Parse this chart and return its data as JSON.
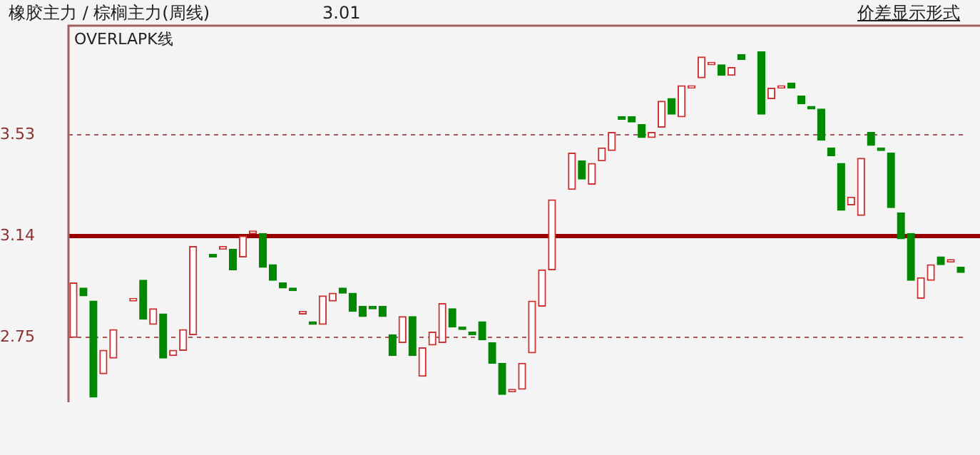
{
  "chart_data": {
    "type": "candlestick",
    "title": "橡胶主力 / 棕榈主力(周线)",
    "subtitle": "3.01",
    "annotations": [
      "价差显示形式",
      "OVERLAPK线"
    ],
    "categories": [
      null,
      null,
      null,
      null,
      null,
      null,
      null,
      null,
      null,
      null,
      null,
      null,
      null,
      null,
      null,
      null,
      null,
      null,
      null,
      null,
      null,
      null,
      null,
      null,
      null,
      null,
      null,
      null,
      null,
      null,
      null,
      null,
      null,
      null,
      null,
      null,
      null,
      null,
      null,
      null,
      null,
      null,
      null,
      null,
      null,
      null,
      null,
      null,
      null,
      null,
      null,
      null,
      null,
      null,
      null,
      null,
      null,
      null,
      null,
      null,
      null,
      null,
      null,
      null,
      null,
      null,
      null,
      null,
      null,
      null,
      null,
      null,
      null,
      null,
      null,
      null,
      null,
      null,
      null,
      null,
      null,
      null,
      null,
      null,
      null,
      null,
      null,
      null,
      null,
      null
    ],
    "ohlc": [
      [
        2.75,
        2.96,
        2.75,
        2.96
      ],
      [
        2.94,
        2.94,
        2.91,
        2.91
      ],
      [
        2.89,
        2.89,
        2.52,
        2.52
      ],
      [
        2.61,
        2.7,
        2.61,
        2.7
      ],
      [
        2.67,
        2.78,
        2.67,
        2.78
      ],
      null,
      [
        2.89,
        2.9,
        2.89,
        2.9
      ],
      [
        2.97,
        2.97,
        2.82,
        2.82
      ],
      [
        2.8,
        2.86,
        2.8,
        2.86
      ],
      [
        2.84,
        2.84,
        2.67,
        2.67
      ],
      [
        2.68,
        2.7,
        2.68,
        2.7
      ],
      [
        2.7,
        2.78,
        2.7,
        2.78
      ],
      [
        2.76,
        3.1,
        2.76,
        3.1
      ],
      null,
      [
        3.07,
        3.07,
        3.06,
        3.06
      ],
      [
        3.09,
        3.1,
        3.09,
        3.1
      ],
      [
        3.09,
        3.09,
        3.01,
        3.01
      ],
      [
        3.06,
        3.14,
        3.06,
        3.14
      ],
      [
        3.15,
        3.16,
        3.15,
        3.16
      ],
      [
        3.15,
        3.15,
        3.02,
        3.02
      ],
      [
        3.03,
        3.03,
        2.97,
        2.97
      ],
      [
        2.96,
        2.96,
        2.94,
        2.94
      ],
      [
        2.94,
        2.94,
        2.93,
        2.93
      ],
      [
        2.84,
        2.85,
        2.84,
        2.85
      ],
      [
        2.81,
        2.81,
        2.8,
        2.8
      ],
      [
        2.8,
        2.91,
        2.8,
        2.91
      ],
      [
        2.89,
        2.92,
        2.89,
        2.92
      ],
      [
        2.94,
        2.94,
        2.92,
        2.92
      ],
      [
        2.92,
        2.92,
        2.85,
        2.85
      ],
      [
        2.87,
        2.87,
        2.83,
        2.83
      ],
      [
        2.87,
        2.87,
        2.86,
        2.86
      ],
      [
        2.87,
        2.87,
        2.83,
        2.83
      ],
      [
        2.76,
        2.76,
        2.68,
        2.68
      ],
      [
        2.73,
        2.83,
        2.73,
        2.83
      ],
      [
        2.83,
        2.83,
        2.68,
        2.68
      ],
      [
        2.6,
        2.71,
        2.6,
        2.71
      ],
      [
        2.72,
        2.77,
        2.72,
        2.77
      ],
      [
        2.73,
        2.88,
        2.73,
        2.88
      ],
      [
        2.86,
        2.86,
        2.79,
        2.79
      ],
      [
        2.79,
        2.79,
        2.78,
        2.78
      ],
      [
        2.77,
        2.77,
        2.76,
        2.76
      ],
      [
        2.81,
        2.81,
        2.74,
        2.74
      ],
      [
        2.73,
        2.73,
        2.65,
        2.65
      ],
      [
        2.65,
        2.65,
        2.53,
        2.53
      ],
      [
        2.54,
        2.55,
        2.54,
        2.55
      ],
      [
        2.55,
        2.65,
        2.55,
        2.65
      ],
      [
        2.69,
        2.89,
        2.69,
        2.89
      ],
      [
        2.87,
        3.01,
        2.87,
        3.01
      ],
      [
        3.01,
        3.28,
        3.01,
        3.28
      ],
      null,
      [
        3.32,
        3.46,
        3.32,
        3.46
      ],
      [
        3.43,
        3.43,
        3.36,
        3.36
      ],
      [
        3.34,
        3.42,
        3.34,
        3.42
      ],
      [
        3.43,
        3.48,
        3.43,
        3.48
      ],
      [
        3.47,
        3.54,
        3.47,
        3.54
      ],
      [
        3.6,
        3.6,
        3.59,
        3.59
      ],
      [
        3.6,
        3.6,
        3.58,
        3.58
      ],
      [
        3.57,
        3.57,
        3.52,
        3.52
      ],
      [
        3.52,
        3.54,
        3.52,
        3.54
      ],
      [
        3.56,
        3.66,
        3.56,
        3.66
      ],
      [
        3.67,
        3.67,
        3.61,
        3.61
      ],
      [
        3.6,
        3.72,
        3.6,
        3.72
      ],
      [
        3.71,
        3.72,
        3.71,
        3.72
      ],
      [
        3.75,
        3.83,
        3.75,
        3.83
      ],
      [
        3.8,
        3.81,
        3.8,
        3.81
      ],
      [
        3.8,
        3.8,
        3.76,
        3.76
      ],
      [
        3.76,
        3.79,
        3.76,
        3.79
      ],
      [
        3.84,
        3.84,
        3.82,
        3.82
      ],
      null,
      [
        3.85,
        3.85,
        3.61,
        3.61
      ],
      [
        3.67,
        3.71,
        3.67,
        3.71
      ],
      [
        3.71,
        3.72,
        3.71,
        3.72
      ],
      [
        3.73,
        3.73,
        3.71,
        3.71
      ],
      [
        3.68,
        3.68,
        3.65,
        3.65
      ],
      [
        3.64,
        3.64,
        3.63,
        3.63
      ],
      [
        3.63,
        3.63,
        3.51,
        3.51
      ],
      [
        3.48,
        3.48,
        3.45,
        3.45
      ],
      [
        3.42,
        3.42,
        3.24,
        3.24
      ],
      [
        3.26,
        3.29,
        3.26,
        3.29
      ],
      [
        3.22,
        3.44,
        3.22,
        3.44
      ],
      [
        3.54,
        3.54,
        3.49,
        3.49
      ],
      [
        3.48,
        3.48,
        3.47,
        3.47
      ],
      [
        3.46,
        3.46,
        3.25,
        3.25
      ],
      [
        3.23,
        3.23,
        3.13,
        3.13
      ],
      [
        3.15,
        3.15,
        2.97,
        2.97
      ],
      [
        2.9,
        2.98,
        2.9,
        2.98
      ],
      [
        2.97,
        3.03,
        2.97,
        3.03
      ],
      [
        3.06,
        3.06,
        3.03,
        3.03
      ],
      [
        3.04,
        3.05,
        3.04,
        3.05
      ],
      [
        3.02,
        3.02,
        3.0,
        3.0
      ]
    ],
    "colors": [
      "#cc3333",
      "#008800",
      "#008800",
      "#cc3333",
      "#cc3333",
      null,
      "#cc3333",
      "#008800",
      "#cc3333",
      "#008800",
      "#cc3333",
      "#cc3333",
      "#cc3333",
      null,
      "#008800",
      "#cc3333",
      "#008800",
      "#cc3333",
      "#cc3333",
      "#008800",
      "#008800",
      "#008800",
      "#008800",
      "#cc3333",
      "#008800",
      "#cc3333",
      "#cc3333",
      "#008800",
      "#008800",
      "#008800",
      "#008800",
      "#008800",
      "#008800",
      "#cc3333",
      "#008800",
      "#cc3333",
      "#cc3333",
      "#cc3333",
      "#008800",
      "#008800",
      "#008800",
      "#008800",
      "#008800",
      "#008800",
      "#cc3333",
      "#cc3333",
      "#cc3333",
      "#cc3333",
      "#cc3333",
      null,
      "#cc3333",
      "#008800",
      "#cc3333",
      "#cc3333",
      "#cc3333",
      "#008800",
      "#008800",
      "#008800",
      "#cc3333",
      "#cc3333",
      "#008800",
      "#cc3333",
      "#cc3333",
      "#cc3333",
      "#cc3333",
      "#008800",
      "#cc3333",
      "#008800",
      null,
      "#008800",
      "#cc3333",
      "#cc3333",
      "#008800",
      "#008800",
      "#008800",
      "#008800",
      "#008800",
      "#008800",
      "#cc3333",
      "#cc3333",
      "#008800",
      "#008800",
      "#008800",
      "#008800",
      "#008800",
      "#cc3333",
      "#cc3333",
      "#008800",
      "#cc3333",
      "#008800"
    ],
    "ylim": [
      2.5,
      3.94
    ],
    "yticks": [
      2.75,
      3.14,
      3.53
    ],
    "grid": "y",
    "line_style": "dashed",
    "tick_labels": "y",
    "legend": false,
    "ref_lines": [
      {
        "axis": "y",
        "value": 3.14,
        "color": "#990000",
        "line_style": "solid"
      }
    ]
  }
}
